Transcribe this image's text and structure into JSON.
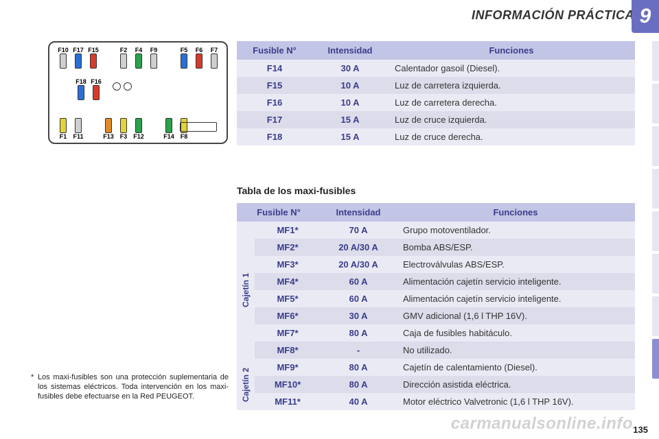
{
  "header": {
    "title": "INFORMACIÓN PRÁCTICA",
    "chapter": "9"
  },
  "fusebox": {
    "top_row": [
      {
        "label": "F10",
        "color": "#cfcfcf"
      },
      {
        "label": "F17",
        "color": "#2a6fd6"
      },
      {
        "label": "F15",
        "color": "#d83a2a"
      },
      {
        "label": "",
        "color": null
      },
      {
        "label": "F2",
        "color": "#cfcfcf"
      },
      {
        "label": "F4",
        "color": "#2aa24a"
      },
      {
        "label": "F9",
        "color": "#cfcfcf"
      },
      {
        "label": "",
        "color": null
      },
      {
        "label": "F5",
        "color": "#2a6fd6"
      },
      {
        "label": "F6",
        "color": "#d83a2a"
      },
      {
        "label": "F7",
        "color": "#cfcfcf"
      }
    ],
    "mid_row": [
      {
        "label": "F18",
        "color": "#2a6fd6"
      },
      {
        "label": "F16",
        "color": "#d83a2a"
      }
    ],
    "bottom_row": [
      {
        "label": "F1",
        "color": "#e3d23a"
      },
      {
        "label": "F11",
        "color": "#cfcfcf"
      },
      {
        "label": "",
        "color": null
      },
      {
        "label": "F13",
        "color": "#e08a2a"
      },
      {
        "label": "F3",
        "color": "#e3d23a"
      },
      {
        "label": "F12",
        "color": "#2aa24a"
      },
      {
        "label": "",
        "color": null
      },
      {
        "label": "F14",
        "color": "#2aa24a"
      },
      {
        "label": "F8",
        "color": "#e3d23a"
      }
    ]
  },
  "table1": {
    "headers": {
      "col1": "Fusible N°",
      "col2": "Intensidad",
      "col3": "Funciones"
    },
    "rows": [
      {
        "code": "F14",
        "amp": "30 A",
        "func": "Calentador gasoil (Diesel)."
      },
      {
        "code": "F15",
        "amp": "10 A",
        "func": "Luz de carretera izquierda."
      },
      {
        "code": "F16",
        "amp": "10 A",
        "func": "Luz de carretera derecha."
      },
      {
        "code": "F17",
        "amp": "15 A",
        "func": "Luz de cruce izquierda."
      },
      {
        "code": "F18",
        "amp": "15 A",
        "func": "Luz de cruce derecha."
      }
    ]
  },
  "section_title": "Tabla de los maxi-fusibles",
  "table2": {
    "headers": {
      "col1": "Fusible N°",
      "col2": "Intensidad",
      "col3": "Funciones"
    },
    "group1_label": "Cajetín 1",
    "group2_label": "Cajetín 2",
    "group1": [
      {
        "code": "MF1*",
        "amp": "70 A",
        "func": "Grupo motoventilador."
      },
      {
        "code": "MF2*",
        "amp": "20 A/30 A",
        "func": "Bomba ABS/ESP."
      },
      {
        "code": "MF3*",
        "amp": "20 A/30 A",
        "func": "Electroválvulas ABS/ESP."
      },
      {
        "code": "MF4*",
        "amp": "60 A",
        "func": "Alimentación cajetín servicio inteligente."
      },
      {
        "code": "MF5*",
        "amp": "60 A",
        "func": "Alimentación cajetín servicio inteligente."
      },
      {
        "code": "MF6*",
        "amp": "30 A",
        "func": "GMV adicional (1,6 l THP 16V)."
      },
      {
        "code": "MF7*",
        "amp": "80 A",
        "func": "Caja de fusibles habitáculo."
      },
      {
        "code": "MF8*",
        "amp": "-",
        "func": "No utilizado."
      }
    ],
    "group2": [
      {
        "code": "MF9*",
        "amp": "80 A",
        "func": "Cajetín de calentamiento (Diesel)."
      },
      {
        "code": "MF10*",
        "amp": "80 A",
        "func": "Dirección asistida eléctrica."
      },
      {
        "code": "MF11*",
        "amp": "40 A",
        "func": "Motor eléctrico Valvetronic (1,6 l THP 16V)."
      }
    ]
  },
  "footnote": {
    "marker": "*",
    "text": "Los maxi-fusibles son una protección suplementaria de los sistemas eléctricos. Toda intervención en los maxi-fusibles debe efectuarse en la Red PEUGEOT."
  },
  "page_number": "135",
  "watermark": "carmanualsonline.info",
  "sidebar": {
    "tabs": 8,
    "active_index": 7,
    "inactive_color": "#e6e6f2",
    "active_color": "#8a8ed4"
  }
}
